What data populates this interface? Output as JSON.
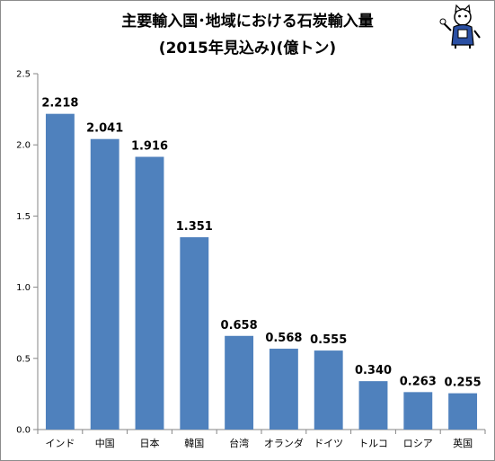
{
  "title_line1": "主要輸入国･地域における石炭輸入量",
  "title_line2": "(2015年見込み)(億トン)",
  "mascot_icon": "cat-mascot-icon",
  "chart_data": {
    "type": "bar",
    "title": "主要輸入国･地域における石炭輸入量 (2015年見込み)(億トン)",
    "categories": [
      "インド",
      "中国",
      "日本",
      "韓国",
      "台湾",
      "オランダ",
      "ドイツ",
      "トルコ",
      "ロシア",
      "英国"
    ],
    "values": [
      2.218,
      2.041,
      1.916,
      1.351,
      0.658,
      0.568,
      0.555,
      0.34,
      0.263,
      0.255
    ],
    "data_labels": [
      "2.218",
      "2.041",
      "1.916",
      "1.351",
      "0.658",
      "0.568",
      "0.555",
      "0.340",
      "0.263",
      "0.255"
    ],
    "y_ticks": [
      "0.0",
      "0.5",
      "1.0",
      "1.5",
      "2.0",
      "2.5"
    ],
    "xlabel": "",
    "ylabel": "",
    "ylim": [
      0,
      2.5
    ],
    "grid": false,
    "legend": "none",
    "bar_color": "#4f81bd"
  }
}
